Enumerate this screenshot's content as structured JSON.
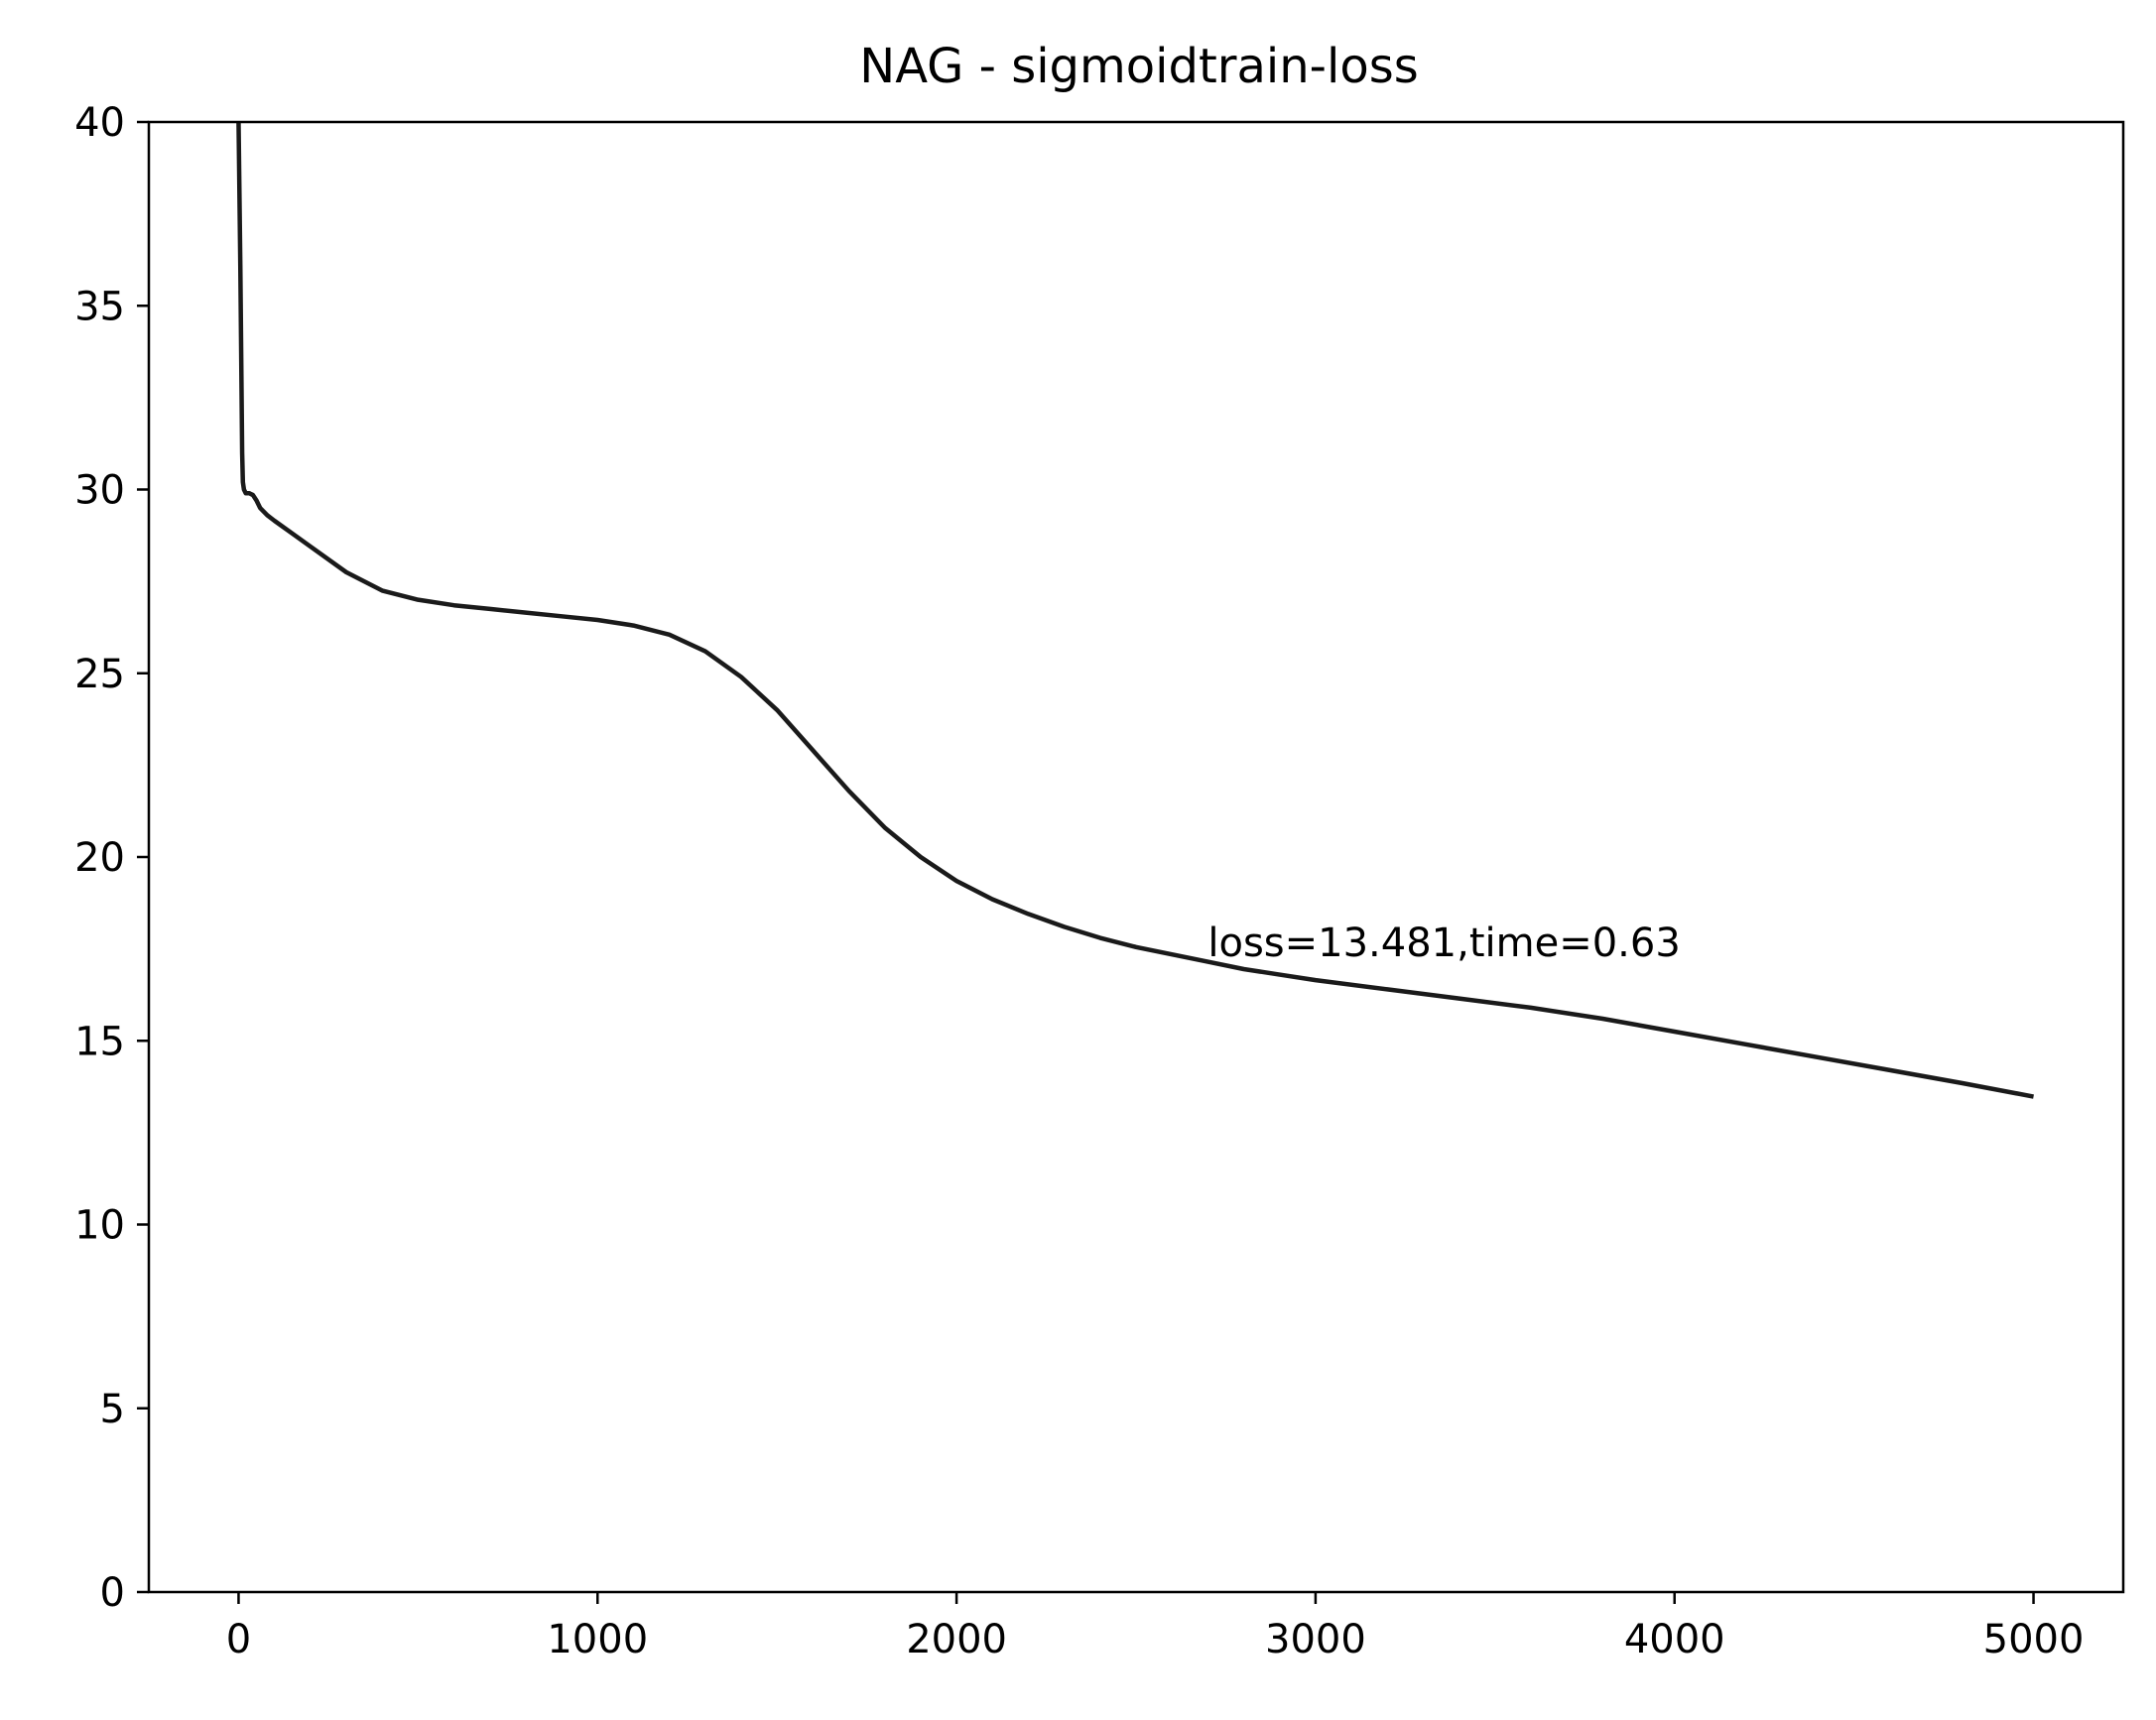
{
  "chart_data": {
    "type": "line",
    "title": "NAG - sigmoidtrain-loss",
    "xlabel": "",
    "ylabel": "",
    "xlim": [
      -250,
      5250
    ],
    "ylim": [
      0,
      40
    ],
    "x_ticks": [
      0,
      1000,
      2000,
      3000,
      4000,
      5000
    ],
    "x_tick_labels": [
      "0",
      "1000",
      "2000",
      "3000",
      "4000",
      "5000"
    ],
    "y_ticks": [
      0,
      5,
      10,
      15,
      20,
      25,
      30,
      35,
      40
    ],
    "y_tick_labels": [
      "0",
      "5",
      "10",
      "15",
      "20",
      "25",
      "30",
      "35",
      "40"
    ],
    "grid": false,
    "line_color": "#1a1a1a",
    "series": [
      {
        "x": [
          0,
          5,
          8,
          10,
          12,
          15,
          20,
          30,
          40,
          50,
          60,
          80,
          100,
          150,
          200,
          300,
          400,
          500,
          600,
          700,
          800,
          900,
          1000,
          1100,
          1200,
          1300,
          1400,
          1500,
          1600,
          1700,
          1800,
          1900,
          2000,
          2100,
          2200,
          2300,
          2400,
          2500,
          2600,
          2700,
          2800,
          2900,
          3000,
          3200,
          3400,
          3600,
          3800,
          4000,
          4200,
          4400,
          4600,
          4800,
          5000
        ],
        "y": [
          40,
          36,
          33,
          31,
          30.2,
          30.0,
          29.9,
          29.9,
          29.85,
          29.7,
          29.5,
          29.3,
          29.15,
          28.8,
          28.45,
          27.75,
          27.25,
          27.0,
          26.85,
          26.75,
          26.65,
          26.55,
          26.45,
          26.3,
          26.05,
          25.6,
          24.9,
          24.0,
          22.9,
          21.8,
          20.8,
          20.0,
          19.35,
          18.85,
          18.45,
          18.1,
          17.8,
          17.55,
          17.35,
          17.15,
          16.95,
          16.8,
          16.65,
          16.4,
          16.15,
          15.9,
          15.6,
          15.25,
          14.9,
          14.55,
          14.2,
          13.85,
          13.481
        ]
      }
    ],
    "annotations": [
      {
        "text": "loss=13.481,time=0.63",
        "x": 2700,
        "y": 17.3
      }
    ]
  }
}
